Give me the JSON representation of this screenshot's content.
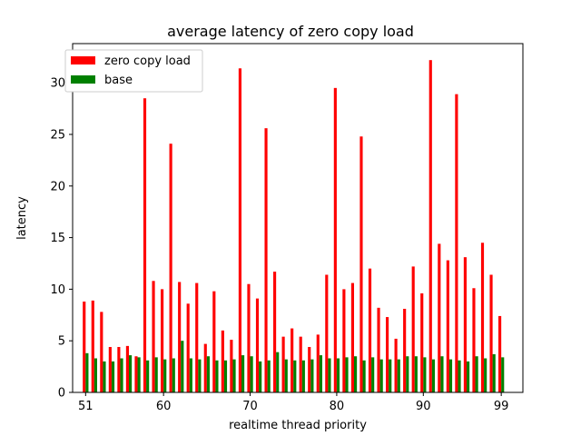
{
  "chart_data": {
    "type": "bar",
    "title": "average latency of zero copy load",
    "xlabel": "realtime thread priority",
    "ylabel": "latency",
    "x": [
      51,
      52,
      53,
      54,
      55,
      56,
      57,
      58,
      59,
      60,
      61,
      62,
      63,
      64,
      65,
      66,
      67,
      68,
      69,
      70,
      71,
      72,
      73,
      74,
      75,
      76,
      77,
      78,
      79,
      80,
      81,
      82,
      83,
      84,
      85,
      86,
      87,
      88,
      89,
      90,
      91,
      92,
      93,
      94,
      95,
      96,
      97,
      98,
      99
    ],
    "xlim": [
      49.5,
      101.5
    ],
    "ylim": [
      0,
      33.8
    ],
    "xticks": [
      51,
      60,
      70,
      80,
      90,
      99
    ],
    "yticks": [
      0,
      5,
      10,
      15,
      20,
      25,
      30
    ],
    "grid": false,
    "legend_position": "upper-left",
    "series": [
      {
        "name": "zero copy load",
        "color": "#ff0000",
        "values": [
          8.8,
          8.9,
          7.8,
          4.4,
          4.4,
          4.5,
          3.5,
          28.5,
          10.8,
          10.0,
          24.1,
          10.7,
          8.6,
          10.6,
          4.7,
          9.8,
          6.0,
          5.1,
          31.4,
          10.5,
          9.1,
          25.6,
          11.7,
          5.4,
          6.2,
          5.4,
          4.4,
          5.6,
          11.4,
          29.5,
          10.0,
          10.6,
          24.8,
          12.0,
          8.2,
          7.3,
          5.2,
          8.1,
          12.2,
          9.6,
          32.2,
          14.4,
          12.8,
          28.9,
          13.1,
          10.1,
          14.5,
          11.4,
          7.4
        ]
      },
      {
        "name": "base",
        "color": "#008000",
        "values": [
          3.8,
          3.3,
          3.0,
          3.0,
          3.3,
          3.6,
          3.4,
          3.1,
          3.4,
          3.2,
          3.3,
          5.0,
          3.3,
          3.2,
          3.5,
          3.1,
          3.1,
          3.2,
          3.6,
          3.5,
          3.0,
          3.1,
          3.9,
          3.2,
          3.1,
          3.1,
          3.2,
          3.6,
          3.3,
          3.3,
          3.4,
          3.5,
          3.1,
          3.4,
          3.2,
          3.2,
          3.2,
          3.5,
          3.5,
          3.4,
          3.2,
          3.5,
          3.2,
          3.1,
          3.0,
          3.5,
          3.3,
          3.7,
          3.4
        ]
      }
    ]
  }
}
